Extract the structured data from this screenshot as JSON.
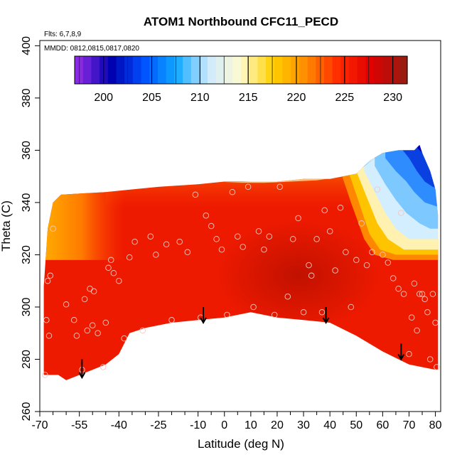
{
  "chart_data": {
    "type": "heatmap",
    "title": "ATOM1 Northbound CFC11_PECD",
    "xlabel": "Latitude (deg N)",
    "ylabel": "Theta (C)",
    "xlim": [
      -70,
      82
    ],
    "ylim": [
      260,
      402
    ],
    "xticks": [
      -70,
      -55,
      -40,
      -25,
      -10,
      0,
      10,
      20,
      30,
      40,
      50,
      60,
      70,
      80
    ],
    "xminor": [
      -65,
      -60,
      -50,
      -45,
      -35,
      -30,
      -20,
      -15,
      -5,
      5,
      15,
      25,
      35,
      45,
      55,
      65,
      75
    ],
    "yticks": [
      260,
      280,
      300,
      320,
      340,
      360,
      380,
      400
    ],
    "annotations": {
      "flights": "Flts: 6,7,8,9",
      "dates": "MMDD: 0812,0815,0817,0820"
    },
    "colorbar": {
      "range": [
        197,
        231.5
      ],
      "ticks": [
        200,
        205,
        210,
        215,
        220,
        225,
        230
      ],
      "colors": [
        "#8a2be2",
        "#0000b0",
        "#0050ff",
        "#10a8ff",
        "#cfeaff",
        "#fffbd0",
        "#ffd000",
        "#ff8c00",
        "#ff2a00",
        "#e00000",
        "#9b1b10"
      ]
    },
    "field": {
      "lat_range": [
        -68.5,
        81
      ],
      "top_boundary": [
        [
          -68.5,
          308
        ],
        [
          -67,
          330
        ],
        [
          -65,
          340
        ],
        [
          -62,
          343
        ],
        [
          -45,
          344
        ],
        [
          -35,
          345
        ],
        [
          -25,
          346
        ],
        [
          -10,
          347
        ],
        [
          0,
          348
        ],
        [
          10,
          348
        ],
        [
          20,
          348
        ],
        [
          30,
          349
        ],
        [
          40,
          349
        ],
        [
          50,
          351
        ],
        [
          55,
          356
        ],
        [
          60,
          359
        ],
        [
          66,
          360
        ],
        [
          72,
          360
        ],
        [
          74,
          362
        ],
        [
          75,
          359
        ],
        [
          78,
          352
        ],
        [
          80,
          345
        ],
        [
          81,
          335
        ]
      ],
      "bottom_boundary": [
        [
          -68.5,
          274
        ],
        [
          -63,
          274
        ],
        [
          -60,
          272
        ],
        [
          -50,
          276
        ],
        [
          -45,
          278
        ],
        [
          -40,
          282
        ],
        [
          -36,
          290
        ],
        [
          -30,
          292
        ],
        [
          -20,
          294
        ],
        [
          -10,
          295
        ],
        [
          0,
          296
        ],
        [
          10,
          298
        ],
        [
          20,
          296
        ],
        [
          30,
          295
        ],
        [
          40,
          294
        ],
        [
          50,
          289
        ],
        [
          60,
          283
        ],
        [
          70,
          278
        ],
        [
          75,
          277
        ],
        [
          80,
          276
        ],
        [
          81,
          276
        ]
      ],
      "mean_value": 228
    },
    "observations": {
      "lat": [
        -68,
        -67.5,
        -67,
        -66.5,
        -66,
        -65,
        -60,
        -57,
        -56,
        -54,
        -53,
        -52,
        -51,
        -50,
        -49.5,
        -48,
        -46,
        -45,
        -44,
        -43,
        -42,
        -40,
        -38,
        -36,
        -34,
        -31,
        -28,
        -26,
        -22,
        -20,
        -17,
        -14,
        -11,
        -9,
        -7,
        -5,
        -3,
        -1,
        1,
        3,
        5,
        7,
        9,
        11,
        13,
        15,
        17,
        19,
        21,
        24,
        26,
        28,
        30,
        32,
        33,
        35,
        37,
        38,
        40,
        42,
        44,
        46,
        48,
        50,
        52,
        54,
        56,
        58,
        60,
        62,
        64,
        66,
        67,
        68,
        70,
        71,
        72,
        73,
        74,
        75,
        76,
        77,
        78,
        79,
        80,
        80.5
      ],
      "theta": [
        274,
        295,
        310,
        289,
        312,
        330,
        301,
        295,
        289,
        276,
        303,
        291,
        307,
        293,
        306,
        290,
        277,
        294,
        315,
        318,
        313,
        310,
        288,
        319,
        325,
        291,
        327,
        320,
        324,
        295,
        325,
        321,
        343,
        296,
        335,
        331,
        326,
        322,
        297,
        344,
        327,
        323,
        346,
        300,
        329,
        322,
        327,
        297,
        346,
        304,
        326,
        334,
        298,
        316,
        312,
        326,
        298,
        337,
        329,
        314,
        338,
        321,
        300,
        318,
        332,
        316,
        321,
        345,
        320,
        317,
        311,
        307,
        336,
        305,
        282,
        296,
        309,
        291,
        305,
        305,
        303,
        298,
        280,
        305,
        294,
        277
      ]
    },
    "arrows": [
      {
        "lat": -54,
        "theta_top": 280,
        "theta_bottom": 273
      },
      {
        "lat": -8,
        "theta_top": 300,
        "theta_bottom": 294
      },
      {
        "lat": 38.5,
        "theta_top": 300,
        "theta_bottom": 294
      },
      {
        "lat": 67,
        "theta_top": 286,
        "theta_bottom": 280
      }
    ]
  }
}
